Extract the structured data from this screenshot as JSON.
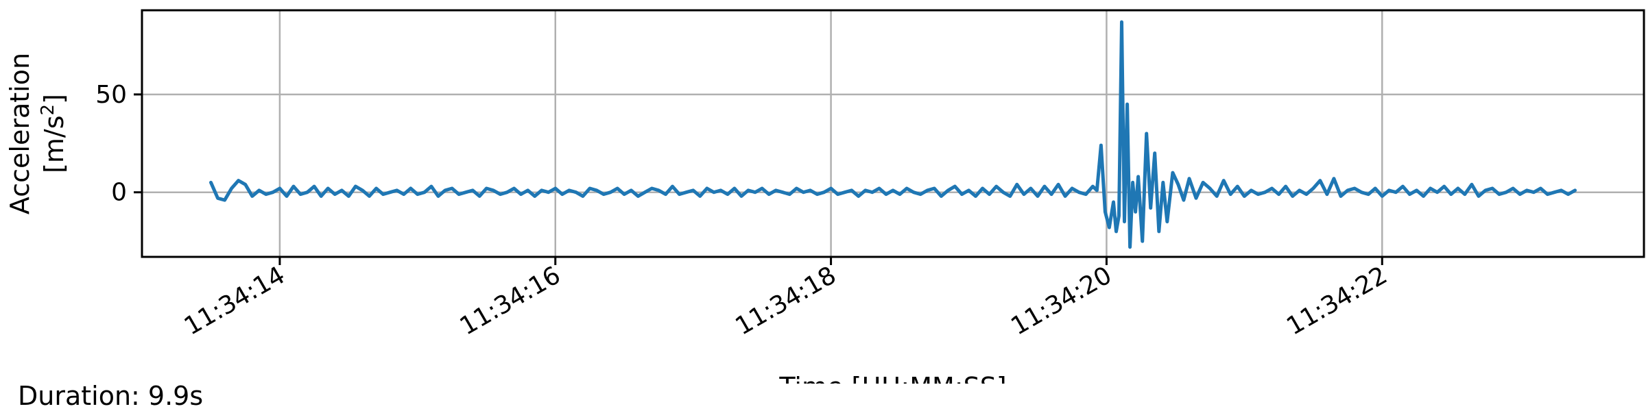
{
  "chart_data": {
    "type": "line",
    "xlabel": "Time [HH:MM:SS]",
    "ylabel_line1": "Acceleration",
    "ylabel_line2_prefix": "[m/s",
    "ylabel_superscript": "2",
    "ylabel_line2_suffix": "]",
    "xlim": [
      "11:34:13.00",
      "11:34:23.90"
    ],
    "ylim": [
      -33,
      93
    ],
    "x_ticks": [
      "11:34:14",
      "11:34:16",
      "11:34:18",
      "11:34:20",
      "11:34:22"
    ],
    "y_ticks": [
      0,
      50
    ],
    "grid": true,
    "line_color": "#1f77b4",
    "series": [
      {
        "x": [
          "11:34:13.50",
          "11:34:13.55",
          "11:34:13.60",
          "11:34:13.65",
          "11:34:13.70",
          "11:34:13.75",
          "11:34:13.80",
          "11:34:13.85",
          "11:34:13.90",
          "11:34:13.95",
          "11:34:14.00",
          "11:34:14.05",
          "11:34:14.10",
          "11:34:14.15",
          "11:34:14.20",
          "11:34:14.25",
          "11:34:14.30",
          "11:34:14.35",
          "11:34:14.40",
          "11:34:14.45",
          "11:34:14.50",
          "11:34:14.55",
          "11:34:14.60",
          "11:34:14.65",
          "11:34:14.70",
          "11:34:14.75",
          "11:34:14.80",
          "11:34:14.85",
          "11:34:14.90",
          "11:34:14.95",
          "11:34:15.00",
          "11:34:15.05",
          "11:34:15.10",
          "11:34:15.15",
          "11:34:15.20",
          "11:34:15.25",
          "11:34:15.30",
          "11:34:15.35",
          "11:34:15.40",
          "11:34:15.45",
          "11:34:15.50",
          "11:34:15.55",
          "11:34:15.60",
          "11:34:15.65",
          "11:34:15.70",
          "11:34:15.75",
          "11:34:15.80",
          "11:34:15.85",
          "11:34:15.90",
          "11:34:15.95",
          "11:34:16.00",
          "11:34:16.05",
          "11:34:16.10",
          "11:34:16.15",
          "11:34:16.20",
          "11:34:16.25",
          "11:34:16.30",
          "11:34:16.35",
          "11:34:16.40",
          "11:34:16.45",
          "11:34:16.50",
          "11:34:16.55",
          "11:34:16.60",
          "11:34:16.65",
          "11:34:16.70",
          "11:34:16.75",
          "11:34:16.80",
          "11:34:16.85",
          "11:34:16.90",
          "11:34:16.95",
          "11:34:17.00",
          "11:34:17.05",
          "11:34:17.10",
          "11:34:17.15",
          "11:34:17.20",
          "11:34:17.25",
          "11:34:17.30",
          "11:34:17.35",
          "11:34:17.40",
          "11:34:17.45",
          "11:34:17.50",
          "11:34:17.55",
          "11:34:17.60",
          "11:34:17.65",
          "11:34:17.70",
          "11:34:17.75",
          "11:34:17.80",
          "11:34:17.85",
          "11:34:17.90",
          "11:34:17.95",
          "11:34:18.00",
          "11:34:18.05",
          "11:34:18.10",
          "11:34:18.15",
          "11:34:18.20",
          "11:34:18.25",
          "11:34:18.30",
          "11:34:18.35",
          "11:34:18.40",
          "11:34:18.45",
          "11:34:18.50",
          "11:34:18.55",
          "11:34:18.60",
          "11:34:18.65",
          "11:34:18.70",
          "11:34:18.75",
          "11:34:18.80",
          "11:34:18.85",
          "11:34:18.90",
          "11:34:18.95",
          "11:34:19.00",
          "11:34:19.05",
          "11:34:19.10",
          "11:34:19.15",
          "11:34:19.20",
          "11:34:19.25",
          "11:34:19.30",
          "11:34:19.35",
          "11:34:19.40",
          "11:34:19.45",
          "11:34:19.50",
          "11:34:19.55",
          "11:34:19.60",
          "11:34:19.65",
          "11:34:19.70",
          "11:34:19.75",
          "11:34:19.80",
          "11:34:19.85",
          "11:34:19.90",
          "11:34:19.93",
          "11:34:19.96",
          "11:34:19.99",
          "11:34:20.02",
          "11:34:20.05",
          "11:34:20.07",
          "11:34:20.09",
          "11:34:20.11",
          "11:34:20.13",
          "11:34:20.15",
          "11:34:20.17",
          "11:34:20.19",
          "11:34:20.21",
          "11:34:20.23",
          "11:34:20.26",
          "11:34:20.29",
          "11:34:20.32",
          "11:34:20.35",
          "11:34:20.38",
          "11:34:20.41",
          "11:34:20.44",
          "11:34:20.48",
          "11:34:20.52",
          "11:34:20.56",
          "11:34:20.60",
          "11:34:20.65",
          "11:34:20.70",
          "11:34:20.75",
          "11:34:20.80",
          "11:34:20.85",
          "11:34:20.90",
          "11:34:20.95",
          "11:34:21.00",
          "11:34:21.05",
          "11:34:21.10",
          "11:34:21.15",
          "11:34:21.20",
          "11:34:21.25",
          "11:34:21.30",
          "11:34:21.35",
          "11:34:21.40",
          "11:34:21.45",
          "11:34:21.50",
          "11:34:21.55",
          "11:34:21.60",
          "11:34:21.65",
          "11:34:21.70",
          "11:34:21.75",
          "11:34:21.80",
          "11:34:21.85",
          "11:34:21.90",
          "11:34:21.95",
          "11:34:22.00",
          "11:34:22.05",
          "11:34:22.10",
          "11:34:22.15",
          "11:34:22.20",
          "11:34:22.25",
          "11:34:22.30",
          "11:34:22.35",
          "11:34:22.40",
          "11:34:22.45",
          "11:34:22.50",
          "11:34:22.55",
          "11:34:22.60",
          "11:34:22.65",
          "11:34:22.70",
          "11:34:22.75",
          "11:34:22.80",
          "11:34:22.85",
          "11:34:22.90",
          "11:34:22.95",
          "11:34:23.00",
          "11:34:23.05",
          "11:34:23.10",
          "11:34:23.15",
          "11:34:23.20",
          "11:34:23.25",
          "11:34:23.30",
          "11:34:23.35",
          "11:34:23.40"
        ],
        "values": [
          5,
          -3,
          -4,
          2,
          6,
          4,
          -2,
          1,
          -1,
          0,
          2,
          -2,
          3,
          -1,
          0,
          3,
          -2,
          2,
          -1,
          1,
          -2,
          3,
          1,
          -2,
          2,
          -1,
          0,
          1,
          -1,
          2,
          -1,
          0,
          3,
          -2,
          1,
          2,
          -1,
          0,
          1,
          -2,
          2,
          1,
          -1,
          0,
          2,
          -1,
          1,
          -2,
          1,
          0,
          2,
          -1,
          1,
          0,
          -2,
          2,
          1,
          -1,
          0,
          2,
          -1,
          1,
          -2,
          0,
          2,
          1,
          -1,
          3,
          -1,
          0,
          1,
          -2,
          2,
          0,
          1,
          -1,
          2,
          -2,
          1,
          0,
          2,
          -1,
          1,
          0,
          -1,
          2,
          0,
          1,
          -1,
          0,
          2,
          -1,
          0,
          1,
          -2,
          1,
          0,
          2,
          -1,
          1,
          -1,
          2,
          0,
          -1,
          1,
          2,
          -2,
          1,
          3,
          -1,
          1,
          -2,
          2,
          -1,
          3,
          0,
          -2,
          4,
          -1,
          2,
          -2,
          3,
          -1,
          4,
          -2,
          2,
          0,
          -1,
          3,
          1,
          24,
          -10,
          -18,
          -5,
          -20,
          -12,
          87,
          -15,
          45,
          -28,
          5,
          -10,
          8,
          -25,
          30,
          -8,
          20,
          -20,
          5,
          -15,
          10,
          4,
          -4,
          7,
          -3,
          5,
          2,
          -2,
          6,
          -1,
          3,
          -2,
          1,
          -1,
          0,
          2,
          -1,
          3,
          -2,
          1,
          -1,
          2,
          6,
          -1,
          7,
          -2,
          1,
          2,
          0,
          -1,
          2,
          -2,
          1,
          0,
          3,
          -1,
          1,
          -2,
          2,
          0,
          3,
          -1,
          2,
          -1,
          4,
          -2,
          1,
          2,
          -1,
          0,
          2,
          -1,
          1,
          0,
          2,
          -1,
          0,
          1,
          -1,
          1
        ]
      }
    ]
  },
  "footer": {
    "duration": "Duration: 9.9s"
  }
}
